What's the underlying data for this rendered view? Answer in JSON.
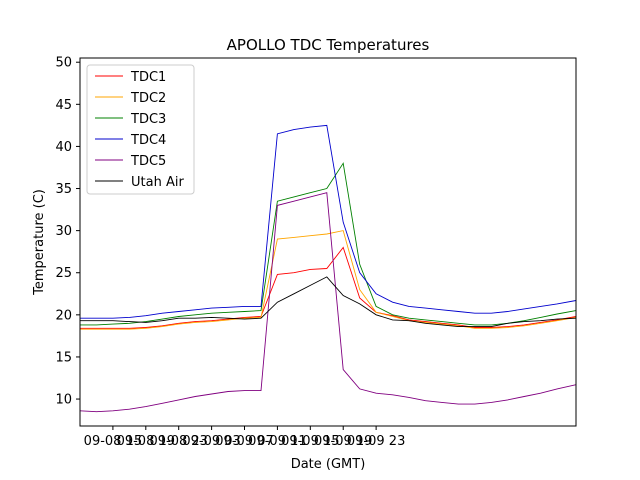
{
  "chart_data": {
    "type": "line",
    "title": "APOLLO TDC Temperatures",
    "xlabel": "Date (GMT)",
    "ylabel": "Temperature (C)",
    "x_unit": "hours since 09-08 11:00 GMT",
    "xlim": [
      0,
      60.3
    ],
    "ylim": [
      6.8,
      50.5
    ],
    "x_ticks": [
      {
        "x": 4,
        "label": "09-08 15"
      },
      {
        "x": 8,
        "label": "09-08 19"
      },
      {
        "x": 12,
        "label": "09-08 23"
      },
      {
        "x": 16,
        "label": "09-09 03"
      },
      {
        "x": 20,
        "label": "09-09 07"
      },
      {
        "x": 24,
        "label": "09-09 11"
      },
      {
        "x": 28,
        "label": "09-09 15"
      },
      {
        "x": 32,
        "label": "09-09 19"
      },
      {
        "x": 36,
        "label": "09-09 23"
      }
    ],
    "y_ticks": [
      10,
      15,
      20,
      25,
      30,
      35,
      40,
      45,
      50
    ],
    "legend_position": "top-left",
    "grid": false,
    "series": [
      {
        "name": "TDC1",
        "color": "#ff0000",
        "x": [
          0,
          2,
          4,
          6,
          8,
          10,
          12,
          14,
          16,
          18,
          20,
          22,
          24,
          26,
          28,
          30,
          32,
          34,
          36,
          38,
          40,
          42,
          44,
          46,
          48,
          50,
          52,
          54,
          56,
          58,
          60.3
        ],
        "y": [
          18.4,
          18.4,
          18.4,
          18.4,
          18.5,
          18.7,
          19.0,
          19.2,
          19.3,
          19.5,
          19.7,
          19.8,
          24.8,
          25.0,
          25.4,
          25.5,
          28.0,
          22.0,
          20.3,
          19.9,
          19.4,
          19.2,
          19.0,
          18.8,
          18.5,
          18.5,
          18.6,
          18.8,
          19.1,
          19.4,
          19.8
        ]
      },
      {
        "name": "TDC2",
        "color": "#ffa500",
        "x": [
          0,
          2,
          4,
          6,
          8,
          10,
          12,
          14,
          16,
          18,
          20,
          22,
          24,
          26,
          28,
          30,
          32,
          34,
          36,
          38,
          40,
          42,
          44,
          46,
          48,
          50,
          52,
          54,
          56,
          58,
          60.3
        ],
        "y": [
          18.3,
          18.3,
          18.3,
          18.3,
          18.4,
          18.6,
          18.9,
          19.1,
          19.2,
          19.4,
          19.6,
          19.7,
          29.0,
          29.2,
          29.4,
          29.6,
          30.0,
          23.0,
          20.3,
          19.8,
          19.3,
          19.1,
          18.9,
          18.7,
          18.4,
          18.4,
          18.5,
          18.7,
          19.0,
          19.3,
          19.7
        ]
      },
      {
        "name": "TDC3",
        "color": "#008000",
        "x": [
          0,
          2,
          4,
          6,
          8,
          10,
          12,
          14,
          16,
          18,
          20,
          22,
          24,
          26,
          28,
          30,
          32,
          34,
          36,
          38,
          40,
          42,
          44,
          46,
          48,
          50,
          52,
          54,
          56,
          58,
          60.3
        ],
        "y": [
          18.8,
          18.8,
          18.9,
          19.0,
          19.2,
          19.5,
          19.8,
          20.0,
          20.2,
          20.3,
          20.4,
          20.5,
          33.5,
          34.0,
          34.5,
          35.0,
          38.0,
          26.0,
          21.0,
          20.0,
          19.6,
          19.4,
          19.2,
          19.0,
          18.8,
          18.8,
          19.0,
          19.3,
          19.7,
          20.1,
          20.5
        ]
      },
      {
        "name": "TDC4",
        "color": "#0000cd",
        "x": [
          0,
          2,
          4,
          6,
          8,
          10,
          12,
          14,
          16,
          18,
          20,
          22,
          24,
          26,
          28,
          30,
          32,
          34,
          36,
          38,
          40,
          42,
          44,
          46,
          48,
          50,
          52,
          54,
          56,
          58,
          60.3
        ],
        "y": [
          19.6,
          19.6,
          19.6,
          19.7,
          19.9,
          20.2,
          20.4,
          20.6,
          20.8,
          20.9,
          21.0,
          21.0,
          41.5,
          42.0,
          42.3,
          42.5,
          31.0,
          25.0,
          22.5,
          21.5,
          21.0,
          20.8,
          20.6,
          20.4,
          20.2,
          20.2,
          20.4,
          20.7,
          21.0,
          21.3,
          21.7
        ]
      },
      {
        "name": "TDC5",
        "color": "#800080",
        "x": [
          0,
          2,
          4,
          6,
          8,
          10,
          12,
          14,
          16,
          18,
          20,
          22,
          24,
          26,
          28,
          30,
          32,
          34,
          36,
          38,
          40,
          42,
          44,
          46,
          48,
          50,
          52,
          54,
          56,
          58,
          60.3
        ],
        "y": [
          8.6,
          8.5,
          8.6,
          8.8,
          9.1,
          9.5,
          9.9,
          10.3,
          10.6,
          10.9,
          11.0,
          11.0,
          33.0,
          33.5,
          34.0,
          34.5,
          13.5,
          11.2,
          10.7,
          10.5,
          10.2,
          9.8,
          9.6,
          9.4,
          9.4,
          9.6,
          9.9,
          10.3,
          10.7,
          11.2,
          11.7
        ]
      },
      {
        "name": "Utah Air",
        "color": "#000000",
        "x": [
          0,
          2,
          4,
          6,
          8,
          10,
          12,
          14,
          16,
          18,
          20,
          22,
          24,
          26,
          28,
          30,
          32,
          34,
          36,
          38,
          40,
          42,
          44,
          46,
          48,
          50,
          52,
          54,
          56,
          58,
          60.3
        ],
        "y": [
          19.3,
          19.3,
          19.3,
          19.2,
          19.1,
          19.3,
          19.6,
          19.6,
          19.7,
          19.6,
          19.5,
          19.6,
          21.5,
          22.5,
          23.5,
          24.5,
          22.3,
          21.3,
          20.0,
          19.4,
          19.3,
          19.0,
          18.8,
          18.6,
          18.6,
          18.6,
          19.0,
          19.2,
          19.3,
          19.5,
          19.6
        ]
      }
    ]
  }
}
